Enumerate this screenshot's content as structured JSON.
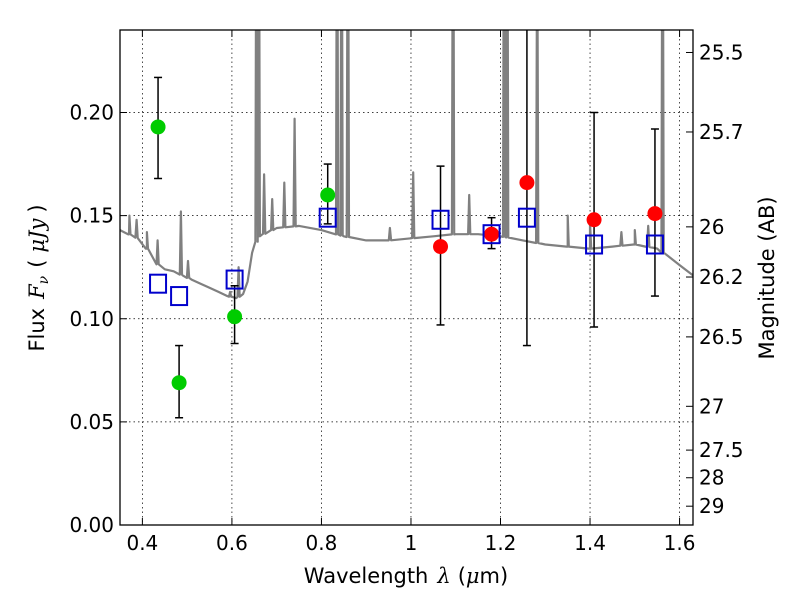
{
  "chart_data": {
    "type": "scatter",
    "title": "",
    "xlabel_text": "Wavelength",
    "xlabel_symbol": "λ",
    "xlabel_unit_open": "(",
    "xlabel_unit_mu": "μ",
    "xlabel_unit_rest": "m)",
    "ylabel_text": "Flux",
    "ylabel_symbol": "F",
    "ylabel_sub": "ν",
    "ylabel_unit_open": "(",
    "ylabel_unit": "μJy",
    "ylabel_unit_close": ")",
    "y2label": "Magnitude (AB)",
    "xlim": [
      0.35,
      1.63
    ],
    "ylim": [
      0.0,
      0.24
    ],
    "grid": true,
    "x_ticks": [
      {
        "value": 0.4,
        "label": "0.4"
      },
      {
        "value": 0.6,
        "label": "0.6"
      },
      {
        "value": 0.8,
        "label": "0.8"
      },
      {
        "value": 1.0,
        "label": "1"
      },
      {
        "value": 1.2,
        "label": "1.2"
      },
      {
        "value": 1.4,
        "label": "1.4"
      },
      {
        "value": 1.6,
        "label": "1.6"
      }
    ],
    "y_ticks": [
      {
        "value": 0.0,
        "label": "0.00"
      },
      {
        "value": 0.05,
        "label": "0.05"
      },
      {
        "value": 0.1,
        "label": "0.10"
      },
      {
        "value": 0.15,
        "label": "0.15"
      },
      {
        "value": 0.2,
        "label": "0.20"
      }
    ],
    "mag_ticks": [
      {
        "value": 25.5,
        "label": "25.5"
      },
      {
        "value": 25.7,
        "label": "25.7"
      },
      {
        "value": 26.0,
        "label": "26"
      },
      {
        "value": 26.2,
        "label": "26.2"
      },
      {
        "value": 26.5,
        "label": "26.5"
      },
      {
        "value": 27.0,
        "label": "27"
      },
      {
        "value": 27.5,
        "label": "27.5"
      },
      {
        "value": 28.0,
        "label": "28"
      },
      {
        "value": 29.0,
        "label": "29"
      }
    ],
    "colors": {
      "green": "#00cc00",
      "red": "#ff0000",
      "model_squares": "#0000cc",
      "spectrum": "#808080",
      "errorbar": "#000000"
    },
    "series": [
      {
        "color": "green",
        "marker": "circle",
        "points": [
          {
            "x": 0.435,
            "y": 0.193,
            "lo": 0.168,
            "hi": 0.217
          },
          {
            "x": 0.482,
            "y": 0.069,
            "lo": 0.052,
            "hi": 0.087
          },
          {
            "x": 0.606,
            "y": 0.101,
            "lo": 0.088,
            "hi": 0.116
          },
          {
            "x": 0.814,
            "y": 0.16,
            "lo": 0.146,
            "hi": 0.175
          }
        ]
      },
      {
        "color": "red",
        "marker": "circle",
        "points": [
          {
            "x": 1.066,
            "y": 0.135,
            "lo": 0.097,
            "hi": 0.174
          },
          {
            "x": 1.18,
            "y": 0.141,
            "lo": 0.134,
            "hi": 0.149
          },
          {
            "x": 1.259,
            "y": 0.166,
            "lo": 0.087,
            "hi": 0.245
          },
          {
            "x": 1.409,
            "y": 0.148,
            "lo": 0.096,
            "hi": 0.2
          },
          {
            "x": 1.545,
            "y": 0.151,
            "lo": 0.111,
            "hi": 0.192
          }
        ]
      },
      {
        "color": "blue",
        "marker": "open-square",
        "points": [
          {
            "x": 0.435,
            "y": 0.117
          },
          {
            "x": 0.482,
            "y": 0.111
          },
          {
            "x": 0.606,
            "y": 0.119
          },
          {
            "x": 0.814,
            "y": 0.149
          },
          {
            "x": 1.066,
            "y": 0.148
          },
          {
            "x": 1.18,
            "y": 0.141
          },
          {
            "x": 1.259,
            "y": 0.149
          },
          {
            "x": 1.409,
            "y": 0.136
          },
          {
            "x": 1.545,
            "y": 0.136
          }
        ]
      }
    ],
    "spectrum": {
      "color": "gray",
      "continuum": [
        [
          0.35,
          0.143
        ],
        [
          0.37,
          0.141
        ],
        [
          0.39,
          0.139
        ],
        [
          0.41,
          0.134
        ],
        [
          0.43,
          0.127
        ],
        [
          0.45,
          0.124
        ],
        [
          0.47,
          0.123
        ],
        [
          0.49,
          0.121
        ],
        [
          0.51,
          0.119
        ],
        [
          0.53,
          0.117
        ],
        [
          0.55,
          0.115
        ],
        [
          0.57,
          0.113
        ],
        [
          0.59,
          0.111
        ],
        [
          0.61,
          0.11
        ],
        [
          0.625,
          0.112
        ],
        [
          0.635,
          0.118
        ],
        [
          0.645,
          0.132
        ],
        [
          0.66,
          0.14
        ],
        [
          0.7,
          0.144
        ],
        [
          0.75,
          0.145
        ],
        [
          0.8,
          0.143
        ],
        [
          0.85,
          0.14
        ],
        [
          0.9,
          0.138
        ],
        [
          0.95,
          0.138
        ],
        [
          1.0,
          0.139
        ],
        [
          1.05,
          0.14
        ],
        [
          1.1,
          0.141
        ],
        [
          1.15,
          0.141
        ],
        [
          1.2,
          0.14
        ],
        [
          1.25,
          0.138
        ],
        [
          1.3,
          0.136
        ],
        [
          1.35,
          0.135
        ],
        [
          1.4,
          0.134
        ],
        [
          1.45,
          0.135
        ],
        [
          1.5,
          0.136
        ],
        [
          1.55,
          0.134
        ],
        [
          1.6,
          0.126
        ],
        [
          1.63,
          0.121
        ]
      ],
      "lines": [
        [
          0.371,
          0.15
        ],
        [
          0.387,
          0.148
        ],
        [
          0.41,
          0.142
        ],
        [
          0.434,
          0.138
        ],
        [
          0.486,
          0.152
        ],
        [
          0.502,
          0.128
        ],
        [
          0.596,
          0.113
        ],
        [
          0.615,
          0.125
        ],
        [
          0.655,
          0.36
        ],
        [
          0.66,
          0.36
        ],
        [
          0.672,
          0.17
        ],
        [
          0.69,
          0.158
        ],
        [
          0.717,
          0.166
        ],
        [
          0.74,
          0.197
        ],
        [
          0.835,
          0.36
        ],
        [
          0.845,
          0.36
        ],
        [
          0.859,
          0.36
        ],
        [
          0.953,
          0.144
        ],
        [
          1.005,
          0.171
        ],
        [
          1.094,
          0.36
        ],
        [
          1.13,
          0.16
        ],
        [
          1.208,
          0.36
        ],
        [
          1.215,
          0.36
        ],
        [
          1.282,
          0.3
        ],
        [
          1.35,
          0.15
        ],
        [
          1.4,
          0.147
        ],
        [
          1.47,
          0.142
        ],
        [
          1.5,
          0.143
        ],
        [
          1.53,
          0.145
        ],
        [
          1.562,
          0.36
        ]
      ]
    }
  }
}
